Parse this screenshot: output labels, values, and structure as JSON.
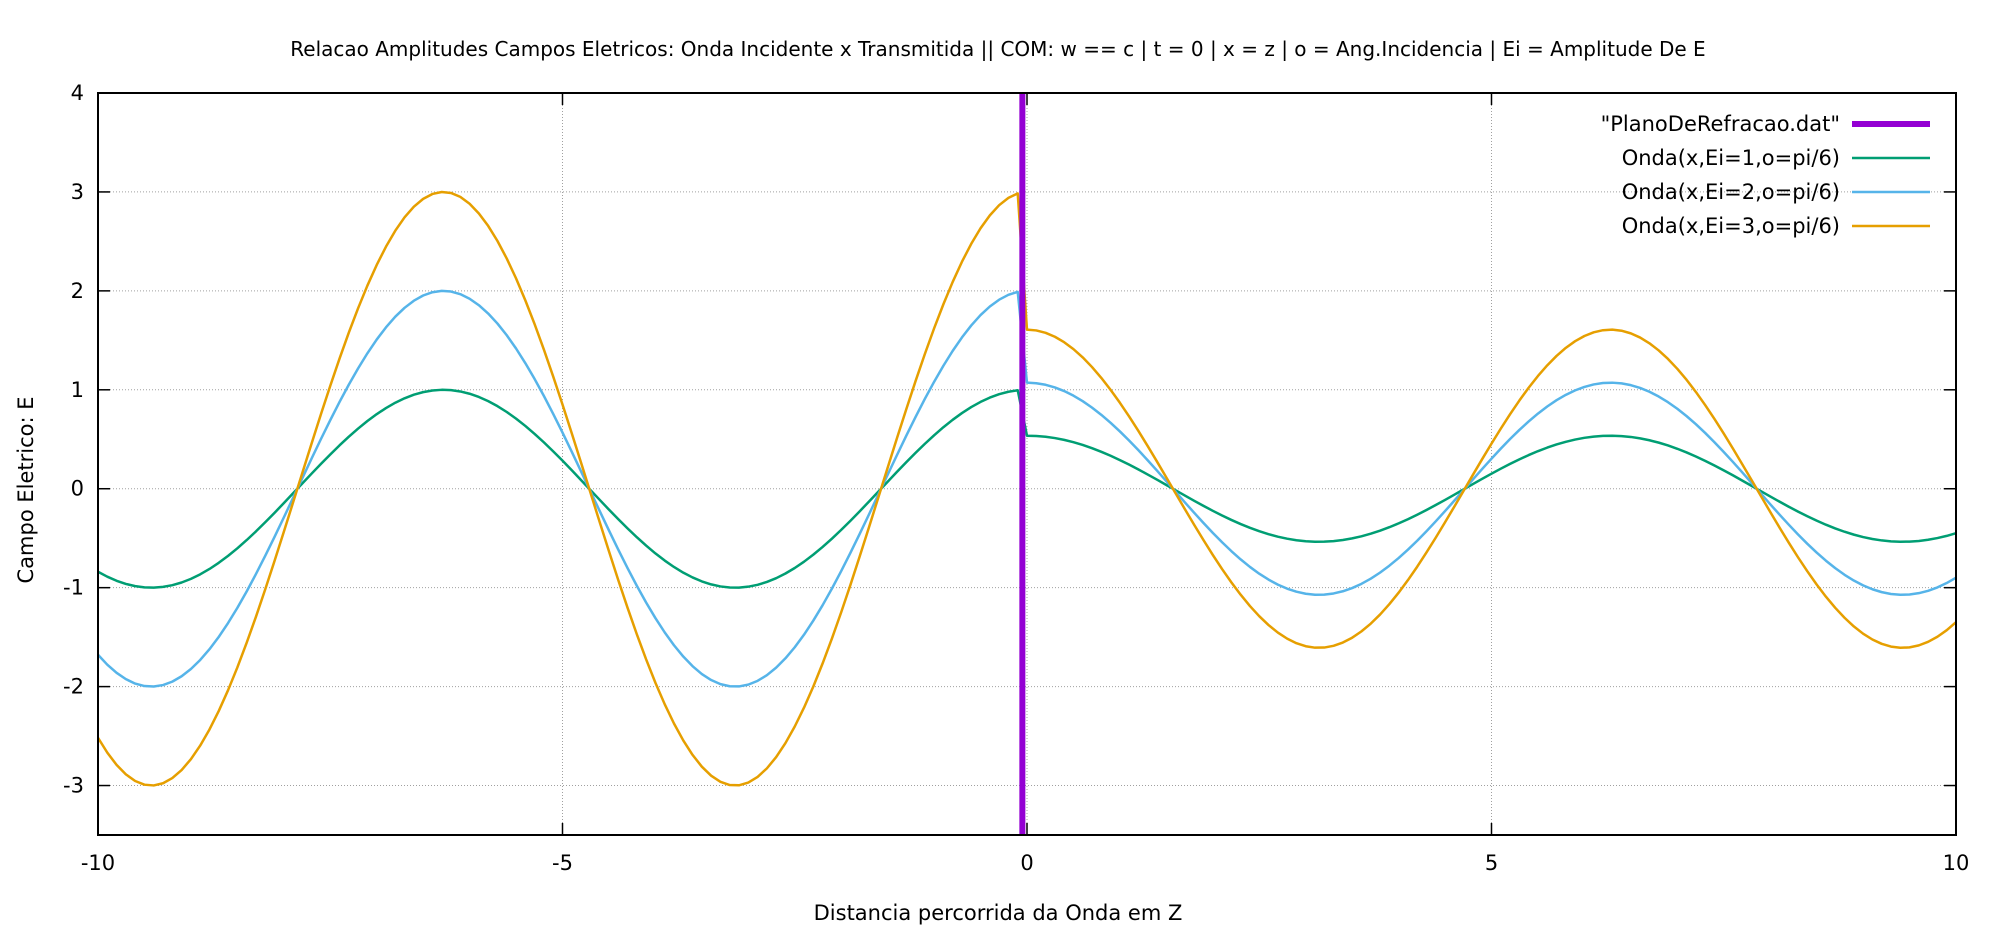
{
  "chart_data": {
    "type": "line",
    "title": "Relacao Amplitudes Campos Eletricos: Onda Incidente x Transmitida || COM: w == c | t = 0 | x = z | o = Ang.Incidencia | Ei = Amplitude De E",
    "xlabel": "Distancia percorrida da Onda em Z",
    "ylabel": "Campo Eletrico: E",
    "xlim": [
      -10,
      10
    ],
    "ylim": [
      -3.5,
      4
    ],
    "xticks": [
      -10,
      -5,
      0,
      5,
      10
    ],
    "yticks": [
      -3,
      -2,
      -1,
      0,
      1,
      2,
      3,
      4
    ],
    "xtick_labels": [
      "-10",
      "-5",
      "0",
      "5",
      "10"
    ],
    "ytick_labels": [
      "-3",
      "-2",
      "-1",
      "0",
      "1",
      "2",
      "3",
      "4"
    ],
    "grid": true,
    "legend_position": "top-right",
    "refraction_plane": {
      "name": "\"PlanoDeRefracao.dat\"",
      "x": -0.05,
      "y_range": [
        -3.5,
        4
      ],
      "color": "#9400d3"
    },
    "model": {
      "incident": "Ei*cos(x)",
      "transmitted": "T*Ei*cos(x)",
      "T": 0.536,
      "interface_x": -0.05
    },
    "series": [
      {
        "name": "Onda(x,Ei=1,o=pi/6)",
        "amplitude": 1,
        "color": "#009e73"
      },
      {
        "name": "Onda(x,Ei=2,o=pi/6)",
        "amplitude": 2,
        "color": "#56b4e9"
      },
      {
        "name": "Onda(x,Ei=3,o=pi/6)",
        "amplitude": 3,
        "color": "#e69f00"
      }
    ]
  }
}
